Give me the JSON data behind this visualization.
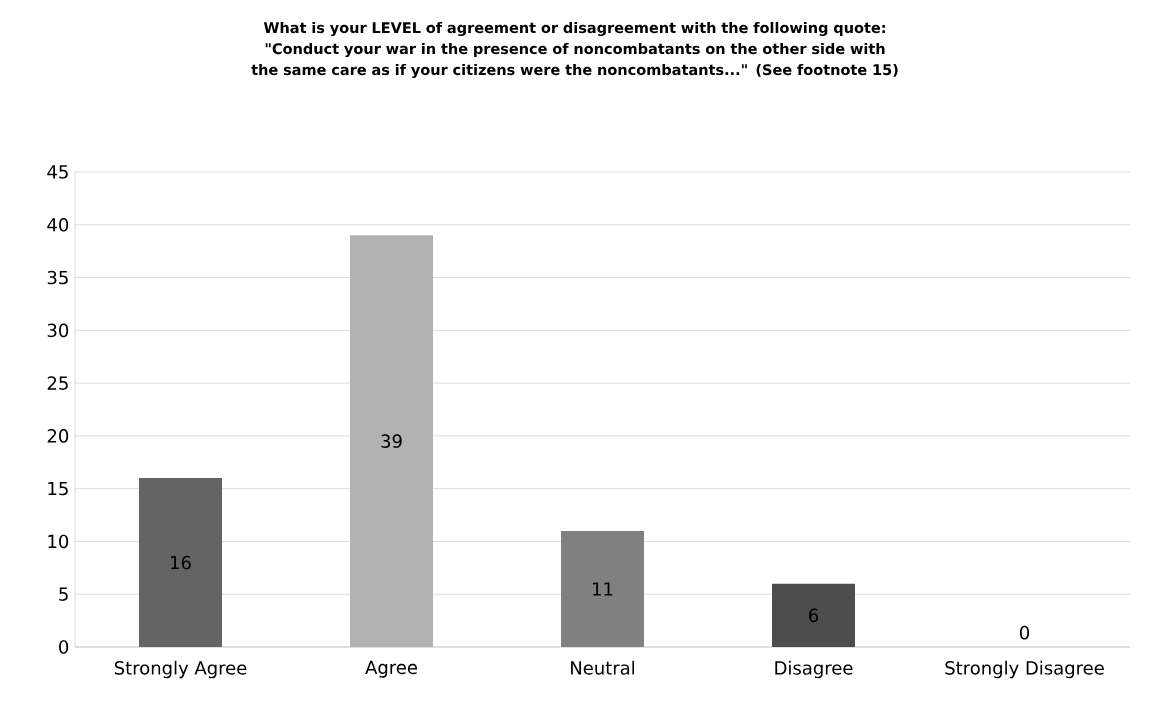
{
  "chart_data": {
    "type": "bar",
    "title": "What is your LEVEL of agreement or disagreement with the following quote:  \"Conduct your war in the presence of noncombatants on the other side with the same care as if your citizens were the noncombatants...\" (See footnote 15)",
    "categories": [
      "Strongly Agree",
      "Agree",
      "Neutral",
      "Disagree",
      "Strongly Disagree"
    ],
    "values": [
      16,
      39,
      11,
      6,
      0
    ],
    "colors": [
      "#646464",
      "#b2b2b2",
      "#808080",
      "#4d4d4d",
      "#9a9a9a"
    ],
    "ylim": [
      0,
      45
    ],
    "yticks": [
      0,
      5,
      10,
      15,
      20,
      25,
      30,
      35,
      40,
      45
    ],
    "grid": "y",
    "data_labels": true
  }
}
